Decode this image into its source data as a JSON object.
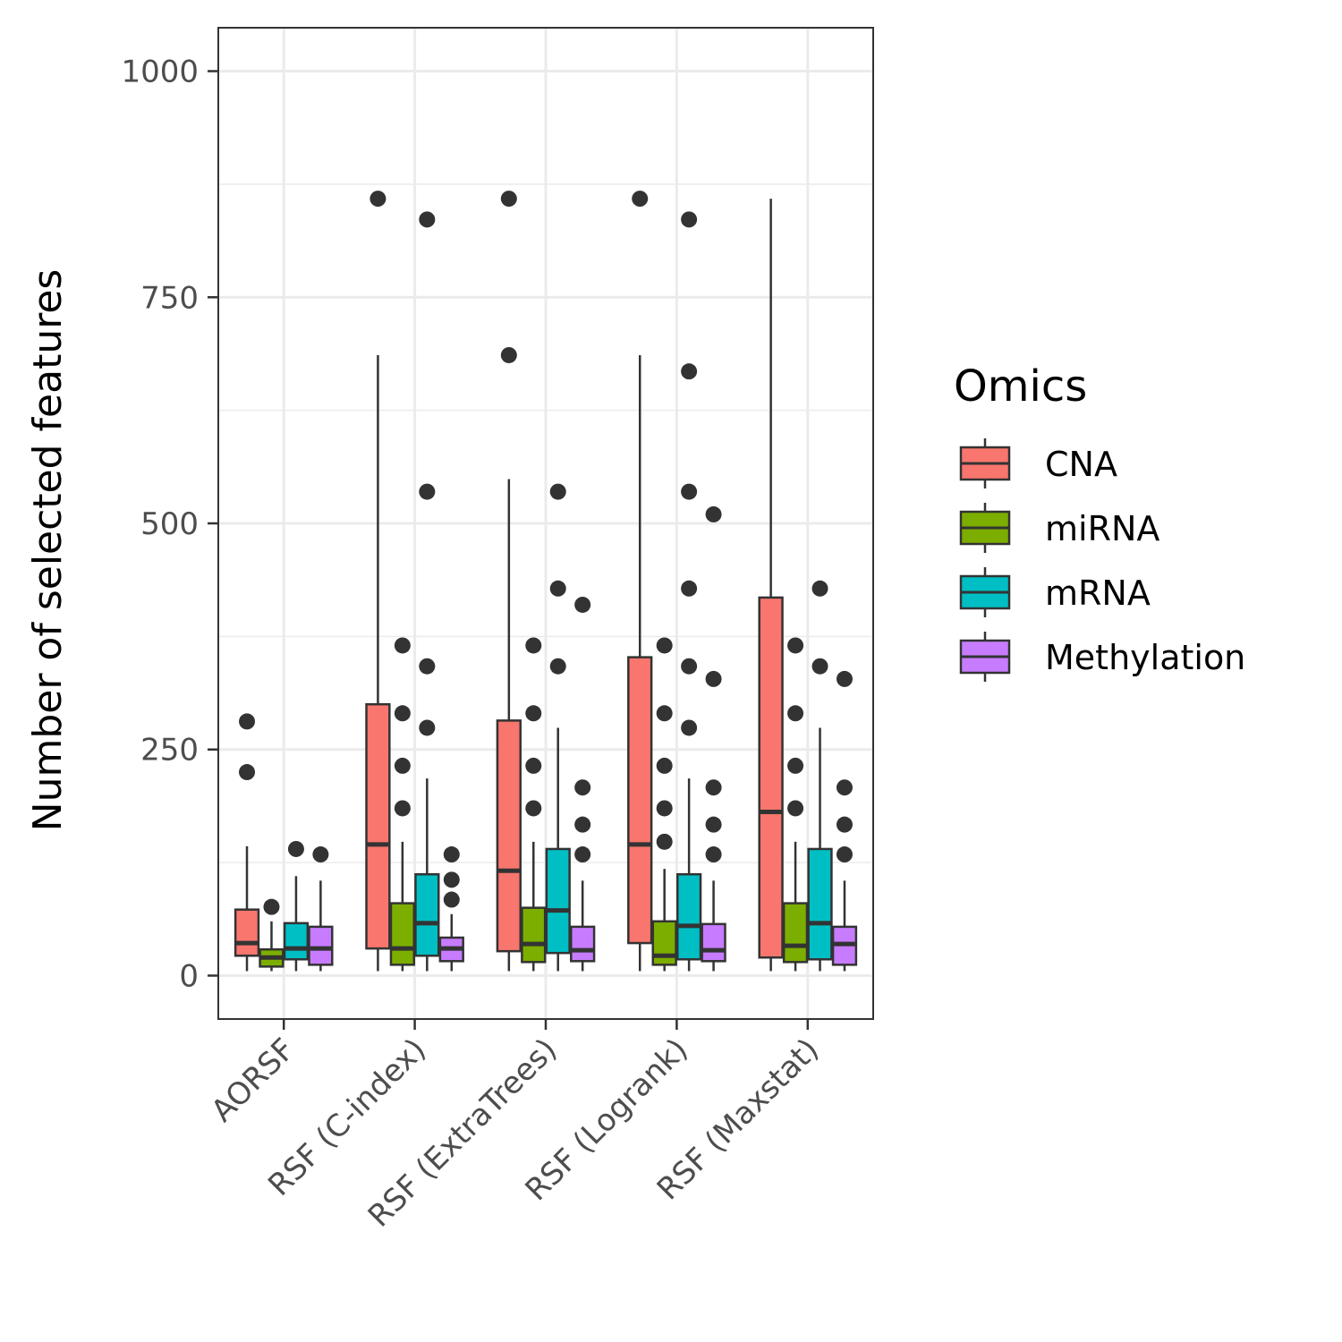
{
  "chart_data": {
    "type": "box",
    "title": "",
    "xlabel": "",
    "ylabel": "Number of selected features",
    "ylim": [
      -48,
      1048
    ],
    "yticks": [
      0,
      250,
      500,
      750,
      1000
    ],
    "grid": true,
    "legend": {
      "title": "Omics",
      "position": "right"
    },
    "categories": [
      "AORSF",
      "RSF (C-index)",
      "RSF (ExtraTrees)",
      "RSF (Logrank)",
      "RSF (Maxstat)"
    ],
    "series": [
      {
        "name": "CNA",
        "color": "#F8766D",
        "boxes": [
          {
            "min": 5,
            "q1": 22,
            "median": 36,
            "q3": 73,
            "max": 143,
            "outliers": [
              225,
              281
            ]
          },
          {
            "min": 5,
            "q1": 30,
            "median": 145,
            "q3": 300,
            "max": 686,
            "outliers": [
              859
            ]
          },
          {
            "min": 5,
            "q1": 27,
            "median": 116,
            "q3": 282,
            "max": 549,
            "outliers": [
              686,
              859
            ]
          },
          {
            "min": 5,
            "q1": 36,
            "median": 145,
            "q3": 352,
            "max": 686,
            "outliers": [
              859
            ]
          },
          {
            "min": 5,
            "q1": 20,
            "median": 181,
            "q3": 418,
            "max": 859,
            "outliers": []
          }
        ]
      },
      {
        "name": "miRNA",
        "color": "#7CAE00",
        "boxes": [
          {
            "min": 5,
            "q1": 10,
            "median": 20,
            "q3": 29,
            "max": 60,
            "outliers": [
              76
            ]
          },
          {
            "min": 5,
            "q1": 12,
            "median": 30,
            "q3": 80,
            "max": 148,
            "outliers": [
              185,
              232,
              290,
              365
            ]
          },
          {
            "min": 5,
            "q1": 15,
            "median": 35,
            "q3": 75,
            "max": 148,
            "outliers": [
              185,
              232,
              290,
              365
            ]
          },
          {
            "min": 5,
            "q1": 12,
            "median": 22,
            "q3": 60,
            "max": 118,
            "outliers": [
              148,
              185,
              232,
              290,
              365
            ]
          },
          {
            "min": 5,
            "q1": 15,
            "median": 33,
            "q3": 80,
            "max": 148,
            "outliers": [
              185,
              232,
              290,
              365
            ]
          }
        ]
      },
      {
        "name": "mRNA",
        "color": "#00BFC4",
        "boxes": [
          {
            "min": 5,
            "q1": 18,
            "median": 30,
            "q3": 58,
            "max": 110,
            "outliers": [
              140
            ]
          },
          {
            "min": 5,
            "q1": 22,
            "median": 58,
            "q3": 112,
            "max": 218,
            "outliers": [
              274,
              342,
              535,
              836
            ]
          },
          {
            "min": 5,
            "q1": 25,
            "median": 72,
            "q3": 140,
            "max": 274,
            "outliers": [
              342,
              428,
              535
            ]
          },
          {
            "min": 5,
            "q1": 18,
            "median": 55,
            "q3": 112,
            "max": 218,
            "outliers": [
              274,
              342,
              428,
              535,
              668,
              836
            ]
          },
          {
            "min": 5,
            "q1": 18,
            "median": 58,
            "q3": 140,
            "max": 274,
            "outliers": [
              342,
              428
            ]
          }
        ]
      },
      {
        "name": "Methylation",
        "color": "#C77CFF",
        "boxes": [
          {
            "min": 5,
            "q1": 12,
            "median": 30,
            "q3": 54,
            "max": 105,
            "outliers": [
              134
            ]
          },
          {
            "min": 5,
            "q1": 16,
            "median": 30,
            "q3": 42,
            "max": 68,
            "outliers": [
              84,
              106,
              134
            ]
          },
          {
            "min": 5,
            "q1": 16,
            "median": 28,
            "q3": 54,
            "max": 105,
            "outliers": [
              134,
              167,
              208,
              410
            ]
          },
          {
            "min": 5,
            "q1": 16,
            "median": 28,
            "q3": 57,
            "max": 105,
            "outliers": [
              134,
              167,
              208,
              328,
              510
            ]
          },
          {
            "min": 5,
            "q1": 12,
            "median": 35,
            "q3": 54,
            "max": 105,
            "outliers": [
              134,
              167,
              208,
              328
            ]
          }
        ]
      }
    ]
  }
}
